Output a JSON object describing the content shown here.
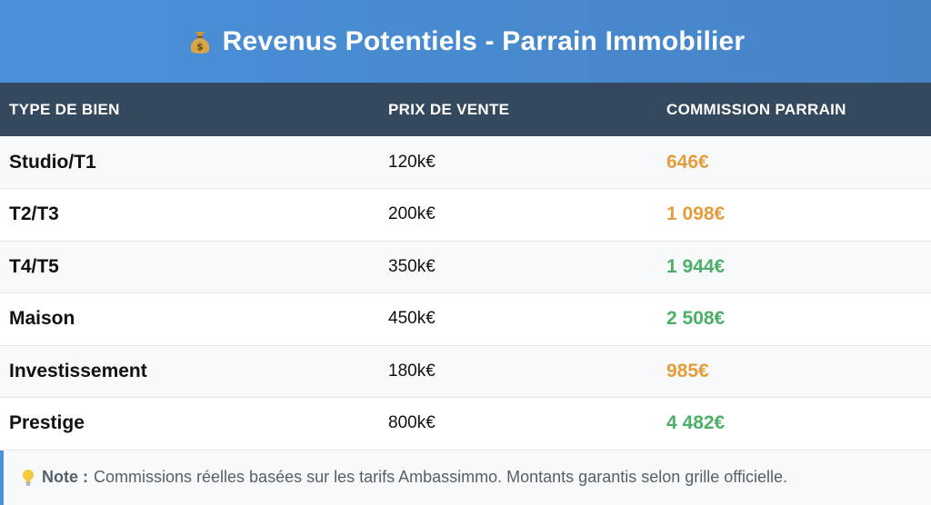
{
  "header": {
    "icon": "money-bag-icon",
    "title": "Revenus Potentiels - Parrain Immobilier"
  },
  "table": {
    "headers": [
      "TYPE DE BIEN",
      "PRIX DE VENTE",
      "COMMISSION PARRAIN"
    ],
    "rows": [
      {
        "type": "Studio/T1",
        "price": "120k€",
        "commission": "646€",
        "color": "#e59d3c"
      },
      {
        "type": "T2/T3",
        "price": "200k€",
        "commission": "1 098€",
        "color": "#e59d3c"
      },
      {
        "type": "T4/T5",
        "price": "350k€",
        "commission": "1 944€",
        "color": "#4caf68"
      },
      {
        "type": "Maison",
        "price": "450k€",
        "commission": "2 508€",
        "color": "#4caf68"
      },
      {
        "type": "Investissement",
        "price": "180k€",
        "commission": "985€",
        "color": "#e59d3c"
      },
      {
        "type": "Prestige",
        "price": "800k€",
        "commission": "4 482€",
        "color": "#4caf68"
      }
    ]
  },
  "note": {
    "icon": "lightbulb-icon",
    "label": "Note :",
    "text": "Commissions réelles basées sur les tarifs Ambassimmo. Montants garantis selon grille officielle."
  }
}
